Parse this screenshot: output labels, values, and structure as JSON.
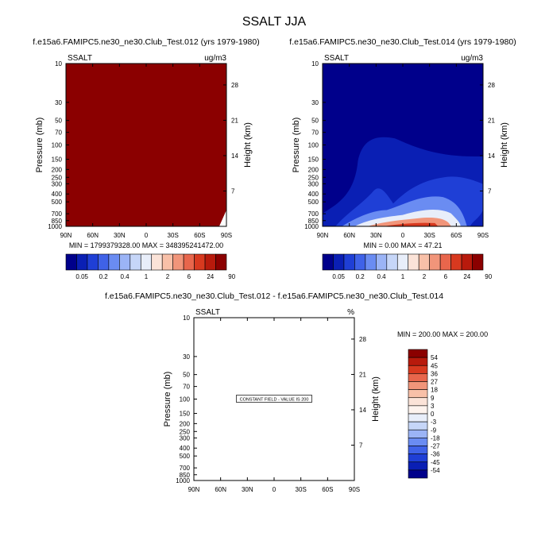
{
  "figure": {
    "title": "SSALT JJA"
  },
  "chart_data": [
    {
      "type": "heatmap",
      "id": "p1",
      "title": "f.e15a6.FAMIPC5.ne30_ne30.Club_Test.012 (yrs 1979-1980)",
      "left_label": "SSALT",
      "right_label": "ug/m3",
      "ylabel": "Pressure (mb)",
      "ylabel_right": "Height (km)",
      "x_ticks": [
        "90N",
        "60N",
        "30N",
        "0",
        "30S",
        "60S",
        "90S"
      ],
      "y_ticks": [
        "10",
        "30",
        "50",
        "70",
        "100",
        "150",
        "200",
        "250",
        "300",
        "400",
        "500",
        "700",
        "850",
        "1000"
      ],
      "y_ticks_right": [
        "28",
        "21",
        "14",
        "7"
      ],
      "stats": "MIN = 1799379328.00   MAX = 348395241472.00",
      "fill_color": "#8b0000",
      "colorbar": {
        "labels": [
          "0.05",
          "0.2",
          "0.4",
          "1",
          "2",
          "6",
          "24",
          "90"
        ],
        "colors": [
          "#00008b",
          "#0a1fb4",
          "#1f3fd6",
          "#3f62e8",
          "#6a8cf2",
          "#9bb4f6",
          "#c6d6f8",
          "#e8eefa",
          "#fbe3d8",
          "#f8c0a8",
          "#f1957a",
          "#e8664c",
          "#d8391f",
          "#b81a0c",
          "#8b0000"
        ]
      }
    },
    {
      "type": "heatmap",
      "id": "p2",
      "title": "f.e15a6.FAMIPC5.ne30_ne30.Club_Test.014 (yrs 1979-1980)",
      "left_label": "SSALT",
      "right_label": "ug/m3",
      "ylabel": "Pressure (mb)",
      "ylabel_right": "Height (km)",
      "x_ticks": [
        "90N",
        "60N",
        "30N",
        "0",
        "30S",
        "60S",
        "90S"
      ],
      "y_ticks": [
        "10",
        "30",
        "50",
        "70",
        "100",
        "150",
        "200",
        "250",
        "300",
        "400",
        "500",
        "700",
        "850",
        "1000"
      ],
      "y_ticks_right": [
        "28",
        "21",
        "14",
        "7"
      ],
      "stats": "MIN =    0.00   MAX =   47.21",
      "colorbar": {
        "labels": [
          "0.05",
          "0.2",
          "0.4",
          "1",
          "2",
          "6",
          "24",
          "90"
        ],
        "colors": [
          "#00008b",
          "#0a1fb4",
          "#1f3fd6",
          "#3f62e8",
          "#6a8cf2",
          "#9bb4f6",
          "#c6d6f8",
          "#e8eefa",
          "#fbe3d8",
          "#f8c0a8",
          "#f1957a",
          "#e8664c",
          "#d8391f",
          "#b81a0c",
          "#8b0000"
        ]
      }
    },
    {
      "type": "heatmap",
      "id": "p3",
      "title": "f.e15a6.FAMIPC5.ne30_ne30.Club_Test.012 - f.e15a6.FAMIPC5.ne30_ne30.Club_Test.014",
      "left_label": "SSALT",
      "right_label": "%",
      "ylabel": "Pressure (mb)",
      "ylabel_right": "Height (km)",
      "x_ticks": [
        "90N",
        "60N",
        "30N",
        "0",
        "30S",
        "60S",
        "90S"
      ],
      "y_ticks": [
        "10",
        "30",
        "50",
        "70",
        "100",
        "150",
        "200",
        "250",
        "300",
        "400",
        "500",
        "700",
        "850",
        "1000"
      ],
      "y_ticks_right": [
        "28",
        "21",
        "14",
        "7"
      ],
      "stats": "MIN = 200.00  MAX = 200.00",
      "annotation": "CONSTANT FIELD - VALUE IS 200",
      "colorbar": {
        "labels": [
          "54",
          "45",
          "36",
          "27",
          "18",
          "9",
          "3",
          "0",
          "-3",
          "-9",
          "-18",
          "-27",
          "-36",
          "-45",
          "-54"
        ],
        "colors": [
          "#8b0000",
          "#b81a0c",
          "#d8391f",
          "#e8664c",
          "#f1957a",
          "#f8c0a8",
          "#fbe3d8",
          "#fdf3ee",
          "#e8eefa",
          "#c6d6f8",
          "#9bb4f6",
          "#6a8cf2",
          "#3f62e8",
          "#1f3fd6",
          "#0a1fb4",
          "#00008b"
        ]
      }
    }
  ]
}
